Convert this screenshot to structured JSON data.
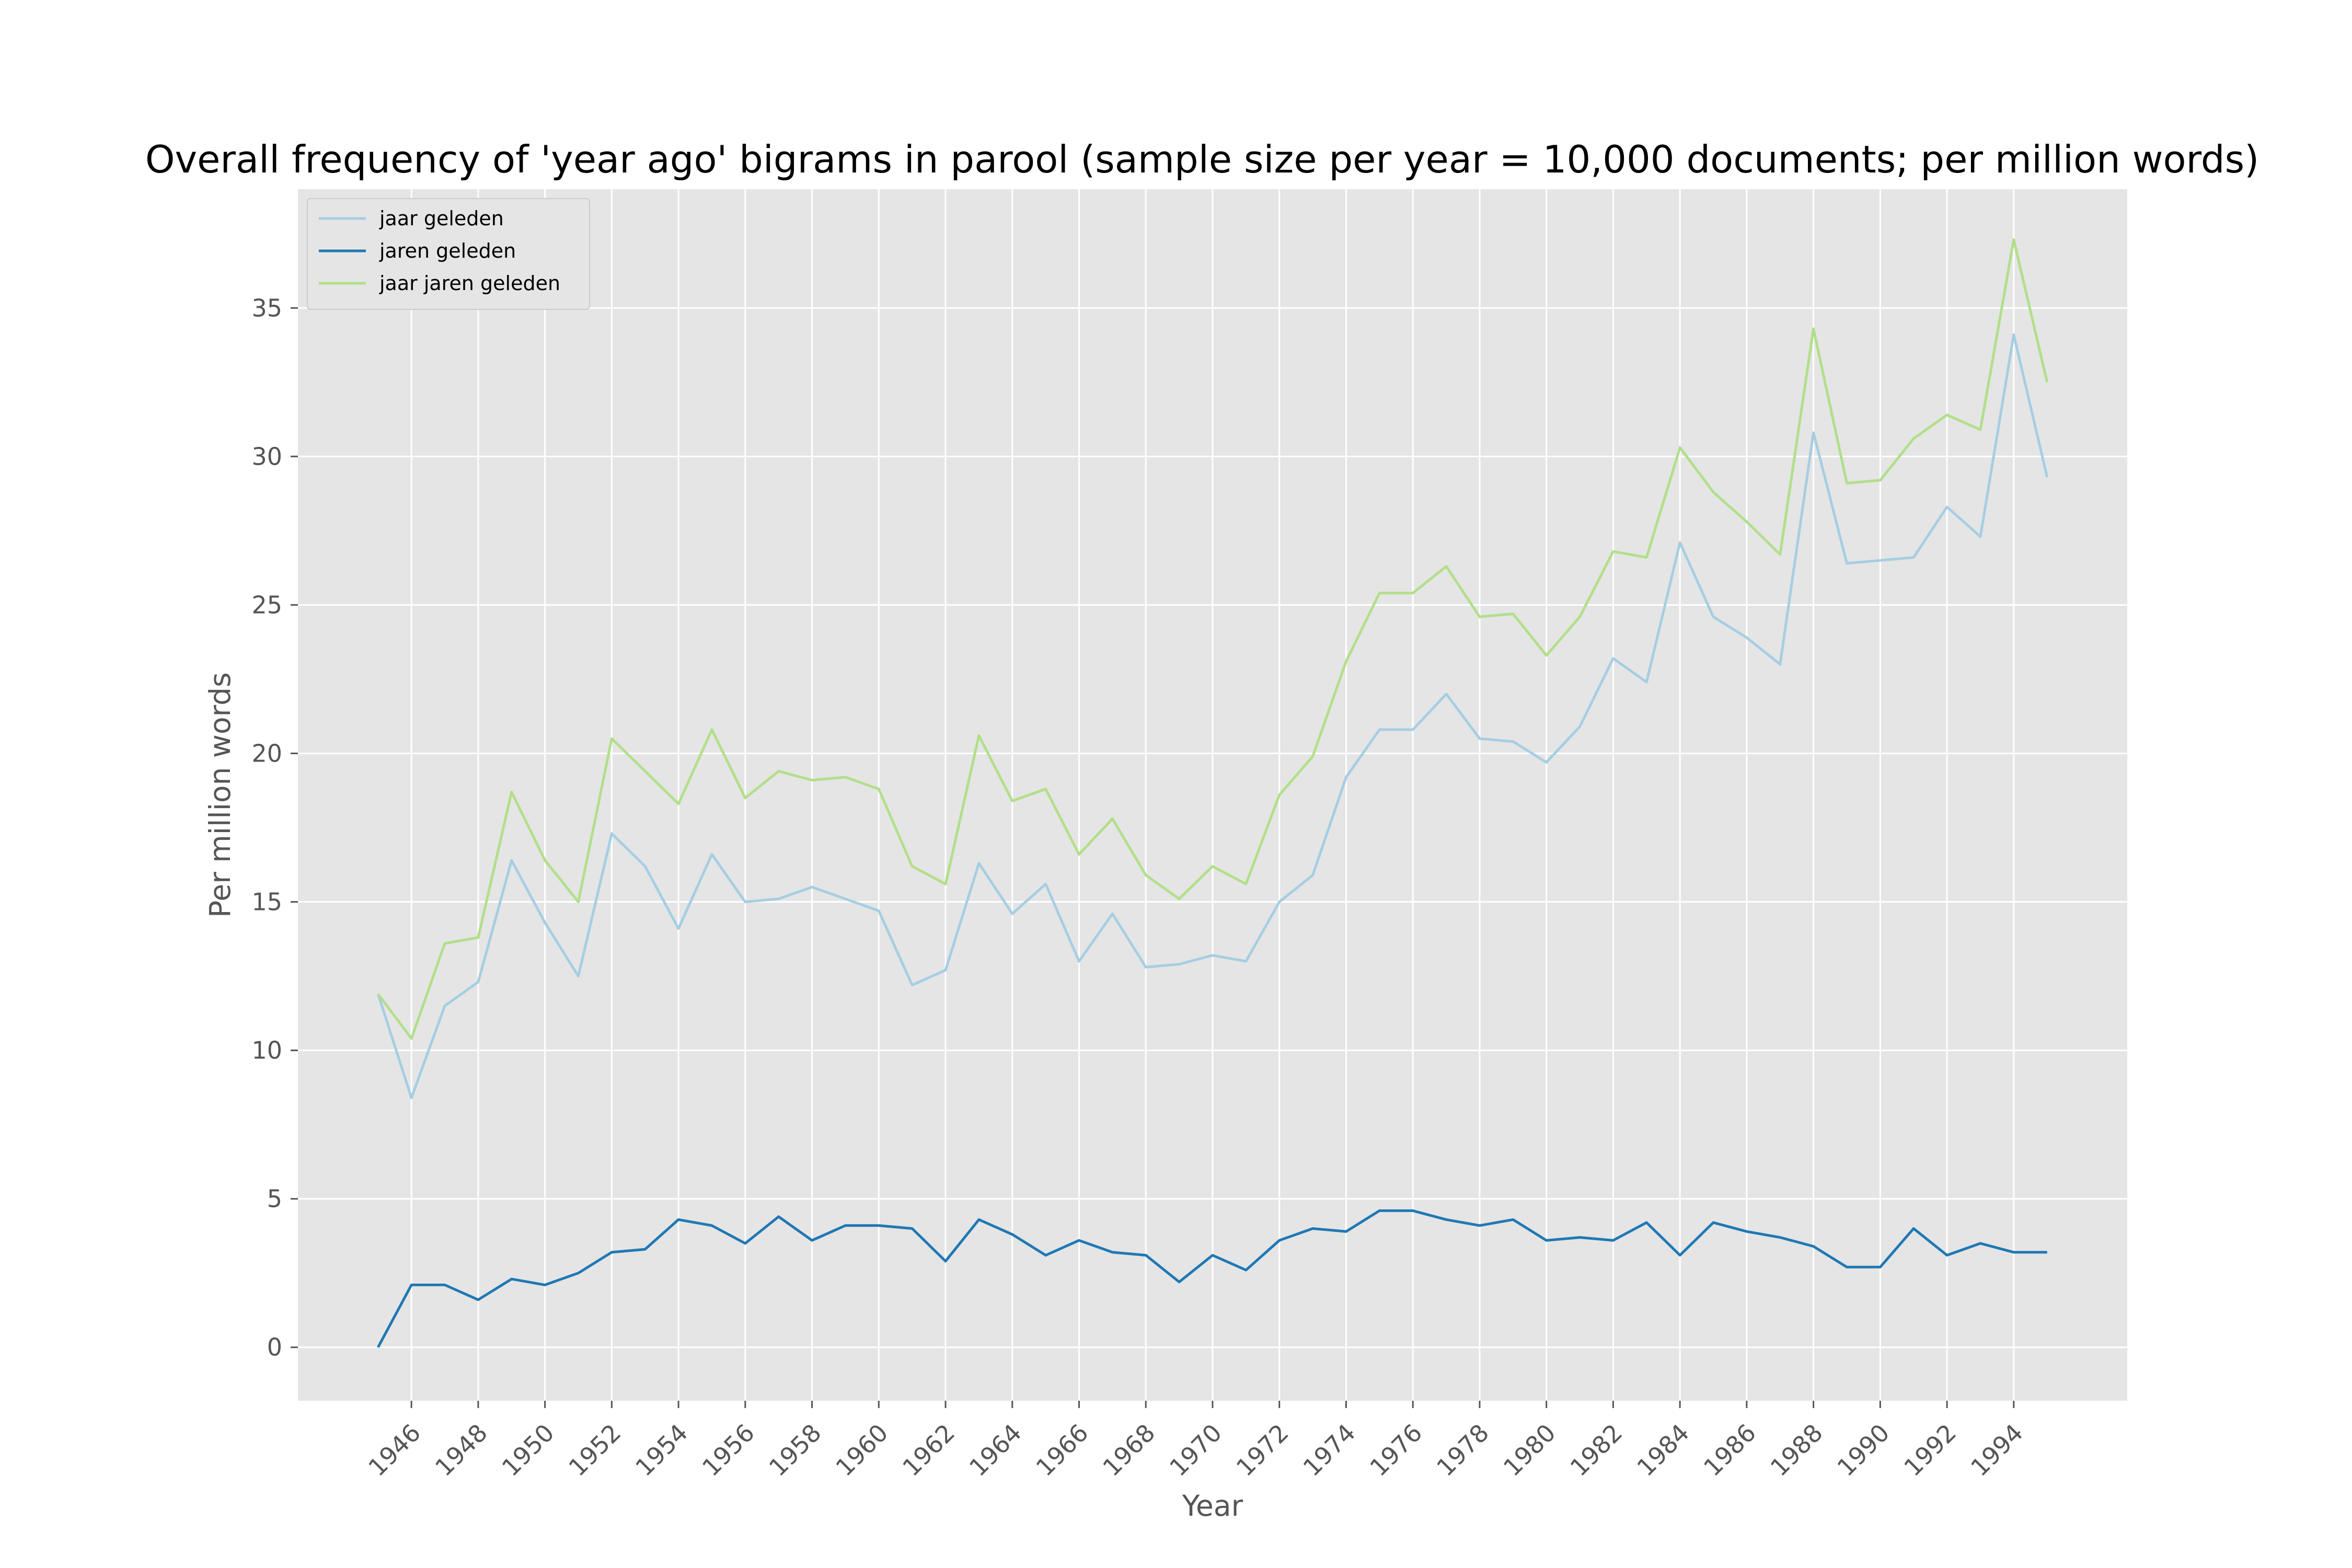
{
  "chart_data": {
    "type": "line",
    "title": "Overall frequency of 'year ago' bigrams in parool (sample size per year = 10,000 documents; per million words)",
    "xlabel": "Year",
    "ylabel": "Per million words",
    "xlim": [
      1942.6,
      1997.4
    ],
    "ylim": [
      -1.8,
      39.0
    ],
    "x_ticks": [
      1946,
      1948,
      1950,
      1952,
      1954,
      1956,
      1958,
      1960,
      1962,
      1964,
      1966,
      1968,
      1970,
      1972,
      1974,
      1976,
      1978,
      1980,
      1982,
      1984,
      1986,
      1988,
      1990,
      1992,
      1994
    ],
    "y_ticks": [
      0,
      5,
      10,
      15,
      20,
      25,
      30,
      35
    ],
    "grid": true,
    "legend_position": "top-left",
    "x": [
      1945,
      1946,
      1947,
      1948,
      1949,
      1950,
      1951,
      1952,
      1953,
      1954,
      1955,
      1956,
      1957,
      1958,
      1959,
      1960,
      1961,
      1962,
      1963,
      1964,
      1965,
      1966,
      1967,
      1968,
      1969,
      1970,
      1971,
      1972,
      1973,
      1974,
      1975,
      1976,
      1977,
      1978,
      1979,
      1980,
      1981,
      1982,
      1983,
      1984,
      1985,
      1986,
      1987,
      1988,
      1989,
      1990,
      1991,
      1992,
      1993,
      1994,
      1995
    ],
    "series": [
      {
        "name": "jaar geleden",
        "color": "#a6cee3",
        "values": [
          11.9,
          8.4,
          11.5,
          12.3,
          16.4,
          14.3,
          12.5,
          17.3,
          16.2,
          14.1,
          16.6,
          15.0,
          15.1,
          15.5,
          15.1,
          14.7,
          12.2,
          12.7,
          16.3,
          14.6,
          15.6,
          13.0,
          14.6,
          12.8,
          12.9,
          13.2,
          13.0,
          15.0,
          15.9,
          19.2,
          20.8,
          20.8,
          22.0,
          20.5,
          20.4,
          19.7,
          20.9,
          23.2,
          22.4,
          27.1,
          24.6,
          23.9,
          23.0,
          30.8,
          26.4,
          26.5,
          26.6,
          28.3,
          27.3,
          34.1,
          29.3
        ]
      },
      {
        "name": "jaren geleden",
        "color": "#1f78b4",
        "values": [
          0.0,
          2.1,
          2.1,
          1.6,
          2.3,
          2.1,
          2.5,
          3.2,
          3.3,
          4.3,
          4.1,
          3.5,
          4.4,
          3.6,
          4.1,
          4.1,
          4.0,
          2.9,
          4.3,
          3.8,
          3.1,
          3.6,
          3.2,
          3.1,
          2.2,
          3.1,
          2.6,
          3.6,
          4.0,
          3.9,
          4.6,
          4.6,
          4.3,
          4.1,
          4.3,
          3.6,
          3.7,
          3.6,
          4.2,
          3.1,
          4.2,
          3.9,
          3.7,
          3.4,
          2.7,
          2.7,
          4.0,
          3.1,
          3.5,
          3.2,
          3.2
        ]
      },
      {
        "name": "jaar jaren geleden",
        "color": "#b2df8a",
        "values": [
          11.9,
          10.4,
          13.6,
          13.8,
          18.7,
          16.4,
          15.0,
          20.5,
          19.4,
          18.3,
          20.8,
          18.5,
          19.4,
          19.1,
          19.2,
          18.8,
          16.2,
          15.6,
          20.6,
          18.4,
          18.8,
          16.6,
          17.8,
          15.9,
          15.1,
          16.2,
          15.6,
          18.6,
          19.9,
          23.1,
          25.4,
          25.4,
          26.3,
          24.6,
          24.7,
          23.3,
          24.6,
          26.8,
          26.6,
          30.3,
          28.8,
          27.8,
          26.7,
          34.3,
          29.1,
          29.2,
          30.6,
          31.4,
          30.9,
          37.3,
          32.5
        ]
      }
    ]
  }
}
